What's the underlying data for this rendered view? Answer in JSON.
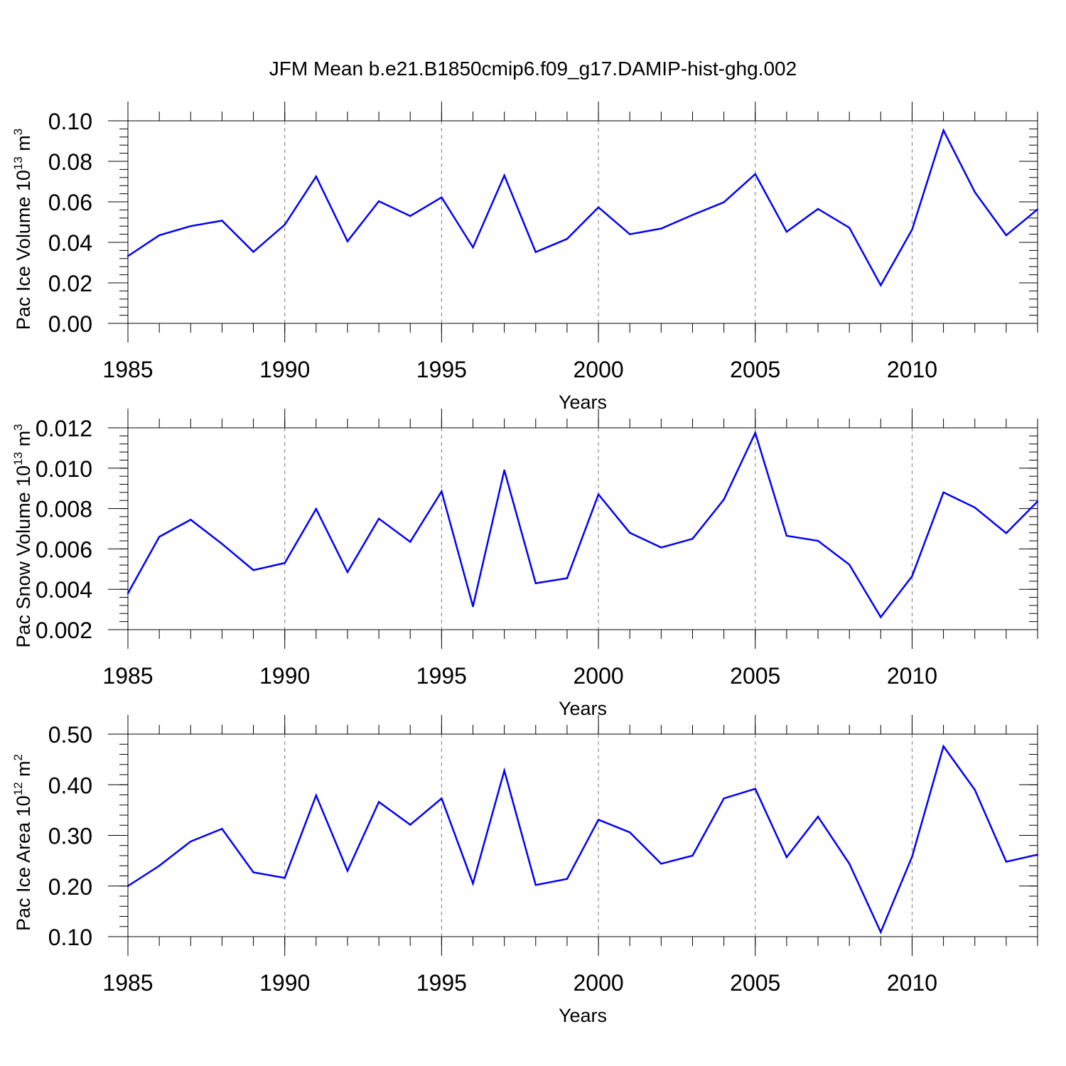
{
  "title": "JFM Mean b.e21.B1850cmip6.f09_g17.DAMIP-hist-ghg.002",
  "line_color": "#0000ff",
  "chart_data": [
    {
      "type": "line",
      "ylabel": {
        "text": "Pac Ice Volume 10",
        "sup": "13",
        "unit": " m",
        "unit_sup": "3"
      },
      "xlabel": "Years",
      "x": [
        1985,
        1986,
        1987,
        1988,
        1989,
        1990,
        1991,
        1992,
        1993,
        1994,
        1995,
        1996,
        1997,
        1998,
        1999,
        2000,
        2001,
        2002,
        2003,
        2004,
        2005,
        2006,
        2007,
        2008,
        2009,
        2010,
        2011,
        2012,
        2013,
        2014
      ],
      "values": [
        0.0332,
        0.0435,
        0.048,
        0.0507,
        0.0353,
        0.0487,
        0.0725,
        0.0405,
        0.0603,
        0.053,
        0.0622,
        0.0375,
        0.073,
        0.0352,
        0.0417,
        0.0573,
        0.044,
        0.0468,
        0.0535,
        0.0598,
        0.0737,
        0.0452,
        0.0565,
        0.0472,
        0.0188,
        0.0463,
        0.0953,
        0.0648,
        0.0435,
        0.0563
      ],
      "xlim": [
        1985,
        2014
      ],
      "ylim": [
        0.0,
        0.1
      ],
      "xticks": [
        "1985",
        "1990",
        "1995",
        "2000",
        "2005",
        "2010"
      ],
      "yticks": [
        "0.00",
        "0.02",
        "0.04",
        "0.06",
        "0.08",
        "0.10"
      ]
    },
    {
      "type": "line",
      "ylabel": {
        "text": "Pac Snow Volume 10",
        "sup": "13",
        "unit": " m",
        "unit_sup": "3"
      },
      "xlabel": "Years",
      "x": [
        1985,
        1986,
        1987,
        1988,
        1989,
        1990,
        1991,
        1992,
        1993,
        1994,
        1995,
        1996,
        1997,
        1998,
        1999,
        2000,
        2001,
        2002,
        2003,
        2004,
        2005,
        2006,
        2007,
        2008,
        2009,
        2010,
        2011,
        2012,
        2013,
        2014
      ],
      "values": [
        0.0038,
        0.0066,
        0.00745,
        0.00625,
        0.00495,
        0.0053,
        0.00798,
        0.00485,
        0.0075,
        0.00635,
        0.00885,
        0.00315,
        0.0099,
        0.0043,
        0.00455,
        0.0087,
        0.0068,
        0.00607,
        0.0065,
        0.00845,
        0.01175,
        0.00665,
        0.0064,
        0.00522,
        0.00262,
        0.00465,
        0.0088,
        0.00805,
        0.00678,
        0.00835
      ],
      "xlim": [
        1985,
        2014
      ],
      "ylim": [
        0.002,
        0.012
      ],
      "xticks": [
        "1985",
        "1990",
        "1995",
        "2000",
        "2005",
        "2010"
      ],
      "yticks": [
        "0.002",
        "0.004",
        "0.006",
        "0.008",
        "0.010",
        "0.012"
      ]
    },
    {
      "type": "line",
      "ylabel": {
        "text": "Pac Ice Area 10",
        "sup": "12",
        "unit": " m",
        "unit_sup": "2"
      },
      "xlabel": "Years",
      "x": [
        1985,
        1986,
        1987,
        1988,
        1989,
        1990,
        1991,
        1992,
        1993,
        1994,
        1995,
        1996,
        1997,
        1998,
        1999,
        2000,
        2001,
        2002,
        2003,
        2004,
        2005,
        2006,
        2007,
        2008,
        2009,
        2010,
        2011,
        2012,
        2013,
        2014
      ],
      "values": [
        0.2,
        0.24,
        0.288,
        0.313,
        0.227,
        0.216,
        0.379,
        0.23,
        0.366,
        0.321,
        0.373,
        0.205,
        0.428,
        0.202,
        0.214,
        0.331,
        0.306,
        0.244,
        0.26,
        0.373,
        0.392,
        0.257,
        0.337,
        0.244,
        0.109,
        0.258,
        0.476,
        0.39,
        0.248,
        0.262
      ],
      "xlim": [
        1985,
        2014
      ],
      "ylim": [
        0.1,
        0.5
      ],
      "xticks": [
        "1985",
        "1990",
        "1995",
        "2000",
        "2005",
        "2010"
      ],
      "yticks": [
        "0.10",
        "0.20",
        "0.30",
        "0.40",
        "0.50"
      ]
    }
  ]
}
